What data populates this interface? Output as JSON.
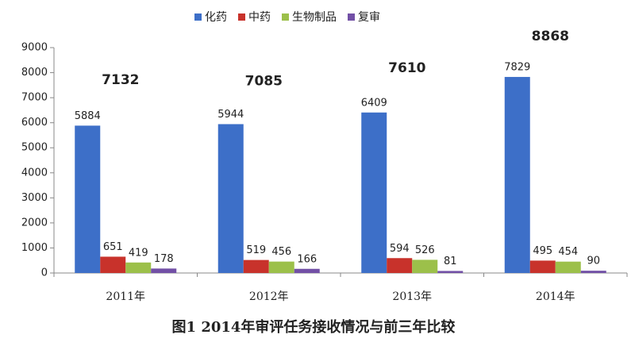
{
  "chart_data": {
    "type": "bar",
    "title": "图1 2014年审评任务接收情况与前三年比较",
    "categories": [
      "2011年",
      "2012年",
      "2013年",
      "2014年"
    ],
    "series": [
      {
        "name": "化药",
        "color": "#3d6fc8",
        "values": [
          5884,
          5944,
          6409,
          7829
        ]
      },
      {
        "name": "中药",
        "color": "#c8322b",
        "values": [
          651,
          519,
          594,
          495
        ]
      },
      {
        "name": "生物制品",
        "color": "#9cc04a",
        "values": [
          419,
          456,
          526,
          454
        ]
      },
      {
        "name": "复审",
        "color": "#7250a6",
        "values": [
          178,
          166,
          81,
          90
        ]
      }
    ],
    "totals": [
      7132,
      7085,
      7610,
      8868
    ],
    "ylim": [
      0,
      9000
    ],
    "yticks": [
      0,
      1000,
      2000,
      3000,
      4000,
      5000,
      6000,
      7000,
      8000,
      9000
    ]
  }
}
